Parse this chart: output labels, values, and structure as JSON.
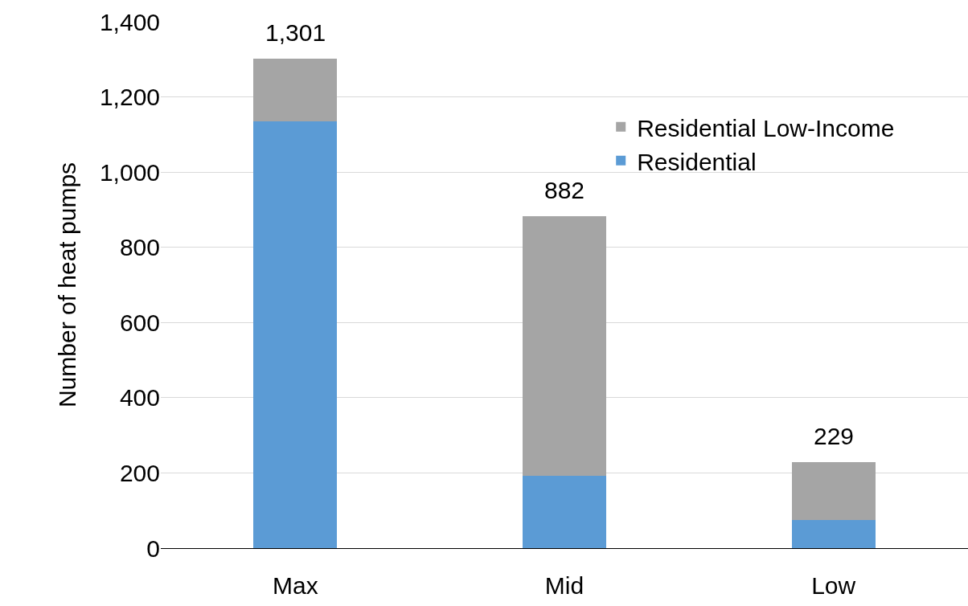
{
  "chart_data": {
    "type": "bar",
    "stacked": true,
    "ylabel": "Number of heat pumps",
    "categories": [
      "Max",
      "Mid",
      "Low"
    ],
    "series": [
      {
        "name": "Residential",
        "color": "#5b9bd5",
        "values": [
          1135,
          192,
          75
        ]
      },
      {
        "name": "Residential Low-Income",
        "color": "#a5a5a5",
        "values": [
          166,
          690,
          154
        ]
      }
    ],
    "totals": [
      "1,301",
      "882",
      "229"
    ],
    "ylim": [
      0,
      1400
    ],
    "yticks": [
      {
        "value": 0,
        "label": "0"
      },
      {
        "value": 200,
        "label": "200"
      },
      {
        "value": 400,
        "label": "400"
      },
      {
        "value": 600,
        "label": "600"
      },
      {
        "value": 800,
        "label": "800"
      },
      {
        "value": 1000,
        "label": "1,000"
      },
      {
        "value": 1200,
        "label": "1,200"
      },
      {
        "value": 1400,
        "label": "1,400"
      }
    ],
    "grid": "y",
    "legend": "top right"
  }
}
